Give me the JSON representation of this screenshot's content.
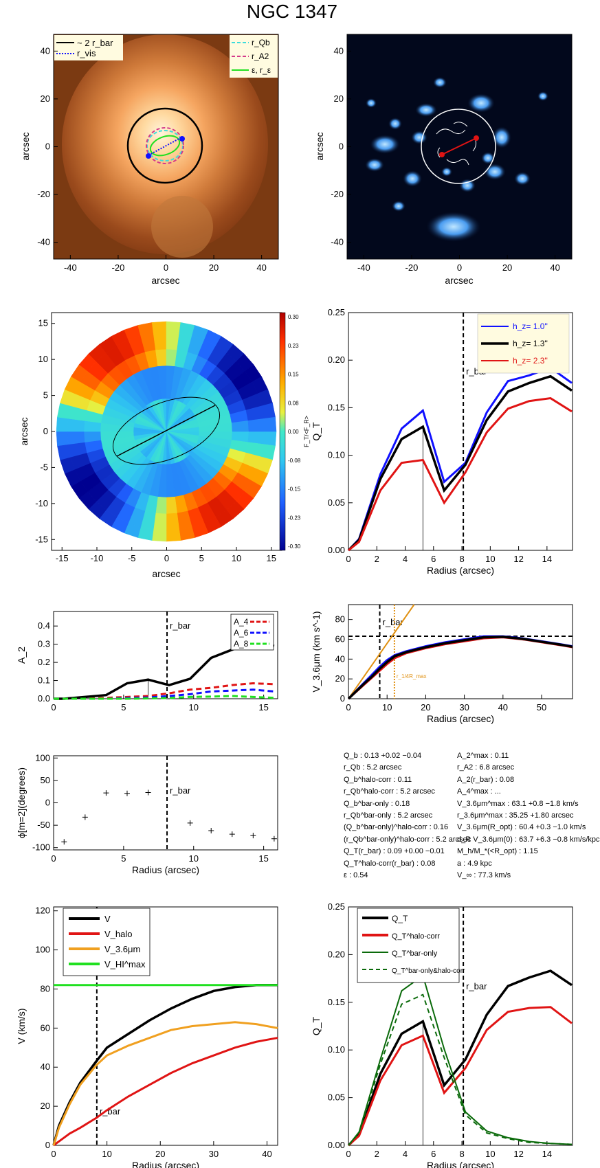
{
  "title": "NGC 1347",
  "colors": {
    "black": "#000000",
    "blue": "#1010ff",
    "red": "#e01414",
    "orange": "#f0a020",
    "green": "#20e020",
    "darkgreen": "#0a6a0a",
    "cyan": "#3cdcdc",
    "magenta": "#d43a8a",
    "gold": "#e09010"
  },
  "panels": {
    "image1": {
      "xlabel": "arcsec",
      "ylabel": "arcsec",
      "ticks": [
        "-40",
        "-20",
        "0",
        "20",
        "40"
      ],
      "legend_left": [
        "~ 2 r_bar",
        "r_vis"
      ],
      "legend_right": [
        "r_Qb",
        "r_A2",
        "ε, r_ε"
      ]
    },
    "image2": {
      "xlabel": "arcsec",
      "ylabel": "arcsec",
      "ticks": [
        "-40",
        "-20",
        "0",
        "20",
        "40"
      ]
    },
    "fourier": {
      "xlabel": "arcsec",
      "ylabel": "arcsec",
      "xticks": [
        "-15",
        "-10",
        "-5",
        "0",
        "5",
        "10",
        "15"
      ],
      "yticks": [
        "15",
        "10",
        "5",
        "0",
        "-5",
        "-10",
        "-15"
      ],
      "cbar_ticks": [
        "0.30",
        "0.23",
        "0.15",
        "0.08",
        "0.00",
        "-0.08",
        "-0.15",
        "-0.23",
        "-0.30"
      ],
      "cbar_label": "F_T/<F_R>"
    },
    "text_panel": {
      "left": [
        "Q_b : 0.13 +0.02 −0.04",
        "r_Qb : 5.2 arcsec",
        "Q_b^halo-corr : 0.11",
        "r_Qb^halo-corr : 5.2 arcsec",
        "Q_b^bar-only : 0.18",
        "r_Qb^bar-only : 5.2 arcsec",
        "(Q_b^bar-only)^halo-corr : 0.16",
        "(r_Qb^bar-only)^halo-corr : 5.2 arcsec",
        "Q_T(r_bar) : 0.09 +0.00 −0.01",
        "Q_T^halo-corr(r_bar) : 0.08",
        "ε : 0.54"
      ],
      "right": [
        "A_2^max : 0.11",
        "r_A2 : 6.8 arcsec",
        "A_2(r_bar) : 0.08",
        "A_4^max : ...",
        "V_3.6μm^max : 63.1 +0.8 −1.8 km/s",
        "r_3.6μm^max : 35.25 +1.80 arcsec",
        "V_3.6μm(R_opt) : 60.4 +0.3 −1.0 km/s",
        "d_R V_3.6μm(0) : 63.7 +6.3 −0.8 km/s/kpc",
        "M_h/M_*(<R_opt) : 1.15",
        "a : 4.9 kpc",
        "V_∞ : 77.3 km/s"
      ]
    }
  },
  "chart_data": [
    {
      "type": "line",
      "id": "qt_h",
      "title": "",
      "xlabel": "Radius (arcsec)",
      "ylabel": "Q_T",
      "xlim": [
        0,
        15.8
      ],
      "ylim": [
        0,
        0.25
      ],
      "xticks": [
        0,
        2,
        4,
        6,
        8,
        10,
        12,
        14
      ],
      "yticks": [
        0,
        0.05,
        0.1,
        0.15,
        0.2,
        0.25
      ],
      "x": [
        0,
        0.75,
        2.25,
        3.75,
        5.25,
        6.75,
        8.25,
        9.75,
        11.25,
        12.75,
        14.25,
        15.75
      ],
      "series": [
        {
          "name": "h_z= 1.0''",
          "color": "#1010ff",
          "values": [
            0,
            0.012,
            0.08,
            0.128,
            0.147,
            0.072,
            0.092,
            0.145,
            0.178,
            0.184,
            0.192,
            0.176
          ]
        },
        {
          "name": "h_z= 1.3''",
          "color": "#000000",
          "values": [
            0,
            0.011,
            0.075,
            0.117,
            0.13,
            0.063,
            0.09,
            0.137,
            0.167,
            0.176,
            0.183,
            0.168
          ]
        },
        {
          "name": "h_z= 2.3''",
          "color": "#e01414",
          "values": [
            0,
            0.009,
            0.063,
            0.092,
            0.095,
            0.05,
            0.082,
            0.124,
            0.149,
            0.157,
            0.16,
            0.146
          ]
        }
      ],
      "annotations": [
        "r_bar"
      ],
      "vline_bar": 8.1,
      "vline_qb": 5.25
    },
    {
      "type": "line",
      "id": "a2",
      "title": "",
      "xlabel": "",
      "ylabel": "A_2",
      "xlim": [
        0,
        16
      ],
      "ylim": [
        0,
        0.48
      ],
      "xticks": [
        0,
        5,
        10,
        15
      ],
      "yticks": [
        0,
        0.1,
        0.2,
        0.3,
        0.4
      ],
      "x": [
        0,
        0.75,
        2.25,
        3.75,
        5.25,
        6.75,
        8.25,
        9.75,
        11.25,
        12.75,
        14.25,
        15.75
      ],
      "series": [
        {
          "name": "A_2",
          "color": "#000000",
          "values": [
            -0.005,
            0.0,
            0.01,
            0.02,
            0.085,
            0.105,
            0.075,
            0.11,
            0.225,
            0.27,
            0.315,
            0.29
          ]
        },
        {
          "name": "A_4",
          "color": "#e01414",
          "values": [
            -0.005,
            -0.003,
            0,
            0.005,
            0.01,
            0.015,
            0.03,
            0.05,
            0.06,
            0.075,
            0.085,
            0.08
          ]
        },
        {
          "name": "A_6",
          "color": "#1010ff",
          "values": [
            -0.005,
            -0.005,
            -0.002,
            0,
            0.004,
            0.007,
            0.015,
            0.025,
            0.04,
            0.045,
            0.05,
            0.04
          ]
        },
        {
          "name": "A_8",
          "color": "#20e020",
          "values": [
            -0.005,
            -0.006,
            -0.005,
            -0.003,
            0,
            0.002,
            0.004,
            0.01,
            0.012,
            0.015,
            0.01,
            0.005
          ]
        }
      ],
      "legend": [
        "A_4",
        "A_6",
        "A_8"
      ],
      "annotations": [
        "r_bar"
      ],
      "vline_bar": 8.1,
      "vline_a2": 6.75
    },
    {
      "type": "line",
      "id": "v36",
      "title": "",
      "xlabel": "Radius (arcsec)",
      "ylabel": "V_3.6μm (km s^-1)",
      "xlim": [
        0,
        58
      ],
      "ylim": [
        0,
        95
      ],
      "xticks": [
        0,
        10,
        20,
        30,
        40,
        50
      ],
      "yticks": [
        0,
        20,
        40,
        60,
        80
      ],
      "x": [
        0,
        2,
        4,
        6,
        8,
        10,
        12,
        15,
        20,
        25,
        30,
        35,
        40,
        45,
        50,
        55,
        58
      ],
      "series": [
        {
          "name": "blue",
          "color": "#1010ff",
          "values": [
            0,
            8,
            16,
            24,
            32,
            39,
            44,
            48,
            53,
            57,
            60,
            63,
            63,
            61,
            58,
            55,
            53
          ]
        },
        {
          "name": "red",
          "color": "#e01414",
          "values": [
            0,
            7,
            14,
            21,
            28,
            35,
            41,
            46,
            51,
            55,
            58,
            61,
            62,
            60,
            57,
            54,
            52
          ]
        },
        {
          "name": "black",
          "color": "#000000",
          "values": [
            0,
            7.5,
            15,
            22,
            30,
            37,
            43,
            47,
            52,
            56,
            59,
            62,
            62.5,
            60.5,
            57.5,
            54.5,
            52.5
          ]
        }
      ],
      "hline": 63.1,
      "vline_bar": 8.1,
      "vline_rin": 11.9,
      "inner_slope_end": [
        17,
        96
      ],
      "annotations": [
        "r_bar",
        "r_1/4R_max"
      ]
    },
    {
      "type": "scatter",
      "id": "phase",
      "title": "",
      "xlabel": "Radius (arcsec)",
      "ylabel": "ϕ[m=2](degrees)",
      "xlim": [
        0,
        16
      ],
      "ylim": [
        -105,
        105
      ],
      "xticks": [
        0,
        5,
        10,
        15
      ],
      "yticks": [
        -100,
        -50,
        0,
        50,
        100
      ],
      "x": [
        0.75,
        2.25,
        3.75,
        5.25,
        6.75,
        9.75,
        11.25,
        12.75,
        14.25,
        15.75
      ],
      "values": [
        -87,
        -32,
        22,
        21,
        23,
        -45,
        -62,
        -70,
        -73,
        -80
      ],
      "annotations": [
        "r_bar"
      ],
      "vline_bar": 8.1
    },
    {
      "type": "line",
      "id": "rotcurve",
      "title": "",
      "xlabel": "Radius (arcsec)",
      "ylabel": "V (km/s)",
      "xlim": [
        0,
        42
      ],
      "ylim": [
        0,
        122
      ],
      "xticks": [
        0,
        10,
        20,
        30,
        40
      ],
      "yticks": [
        0,
        20,
        40,
        60,
        80,
        100,
        120
      ],
      "x": [
        0,
        1,
        3,
        5,
        8,
        10,
        14,
        18,
        22,
        26,
        30,
        34,
        38,
        42
      ],
      "series": [
        {
          "name": "V",
          "color": "#000000",
          "values": [
            0,
            10,
            22,
            32,
            43,
            50,
            57,
            64,
            70,
            75,
            79,
            81,
            82,
            82
          ]
        },
        {
          "name": "V_halo",
          "color": "#e01414",
          "values": [
            0,
            2,
            6,
            9,
            14,
            18,
            25,
            31,
            37,
            42,
            46,
            50,
            53,
            55
          ]
        },
        {
          "name": "V_3.6μm",
          "color": "#f0a020",
          "values": [
            0,
            9,
            21,
            31,
            41,
            46,
            51,
            55,
            59,
            61,
            62,
            63,
            62,
            60
          ]
        },
        {
          "name": "V_HI^max",
          "color": "#20e020",
          "values": [
            82,
            82,
            82,
            82,
            82,
            82,
            82,
            82,
            82,
            82,
            82,
            82,
            82,
            82
          ]
        }
      ],
      "annotations": [
        "r_bar"
      ],
      "vline_bar": 8.1
    },
    {
      "type": "line",
      "id": "qt_corr",
      "title": "",
      "xlabel": "Radius (arcsec)",
      "ylabel": "Q_T",
      "xlim": [
        0,
        15.8
      ],
      "ylim": [
        0,
        0.25
      ],
      "xticks": [
        0,
        2,
        4,
        6,
        8,
        10,
        12,
        14
      ],
      "yticks": [
        0,
        0.05,
        0.1,
        0.15,
        0.2,
        0.25
      ],
      "x": [
        0,
        0.75,
        2.25,
        3.75,
        5.25,
        6.75,
        8.25,
        9.75,
        11.25,
        12.75,
        14.25,
        15.75
      ],
      "series": [
        {
          "name": "Q_T",
          "color": "#000000",
          "dash": false,
          "values": [
            0,
            0.011,
            0.075,
            0.117,
            0.13,
            0.063,
            0.09,
            0.137,
            0.167,
            0.176,
            0.183,
            0.168
          ]
        },
        {
          "name": "Q_T^halo-corr",
          "color": "#e01414",
          "dash": false,
          "values": [
            0,
            0.01,
            0.068,
            0.105,
            0.115,
            0.055,
            0.081,
            0.121,
            0.14,
            0.144,
            0.145,
            0.128
          ]
        },
        {
          "name": "Q_T^bar-only",
          "color": "#0a6a0a",
          "dash": false,
          "values": [
            0,
            0.014,
            0.09,
            0.162,
            0.178,
            0.101,
            0.035,
            0.015,
            0.008,
            0.004,
            0.002,
            0.001
          ]
        },
        {
          "name": "Q_T^bar-only&halo-corr",
          "color": "#0a6a0a",
          "dash": true,
          "values": [
            0,
            0.013,
            0.085,
            0.148,
            0.158,
            0.092,
            0.032,
            0.013,
            0.007,
            0.003,
            0.002,
            0.001
          ]
        }
      ],
      "annotations": [
        "r_bar"
      ],
      "vline_bar": 8.1,
      "vline_qb": 5.25
    }
  ]
}
